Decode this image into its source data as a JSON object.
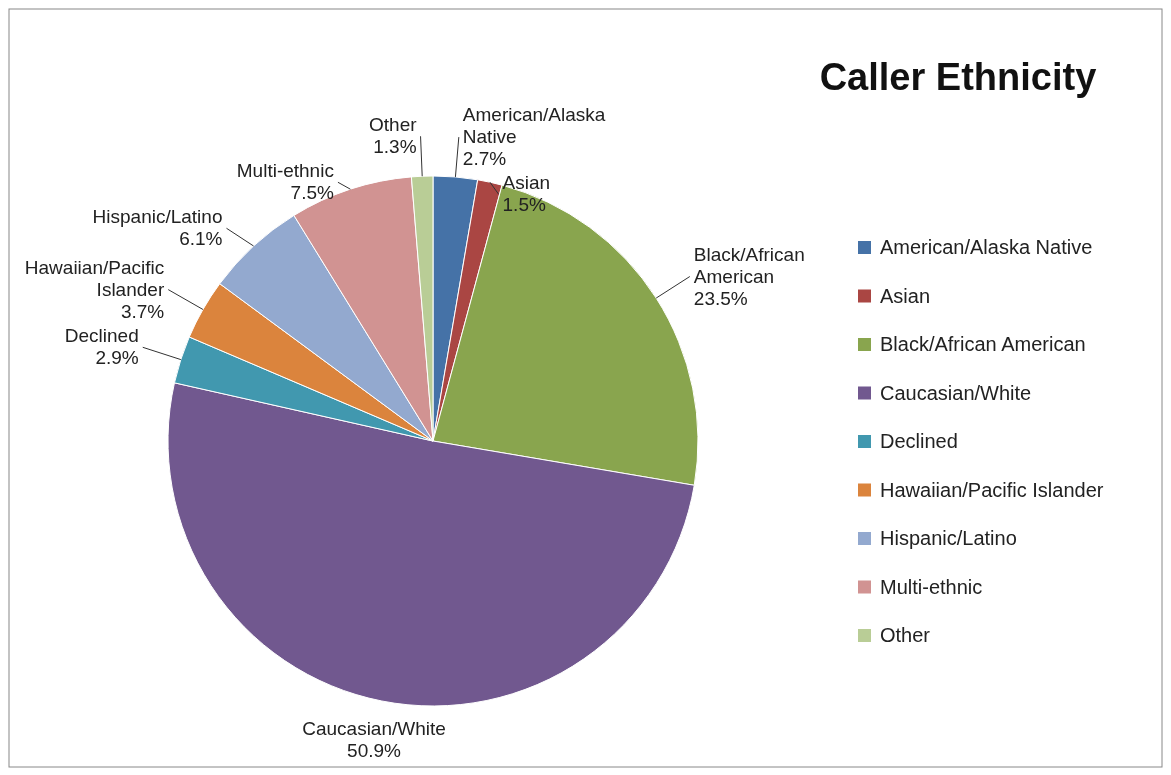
{
  "chart_data": {
    "type": "pie",
    "title": "Caller Ethnicity",
    "categories": [
      "American/Alaska Native",
      "Asian",
      "Black/African American",
      "Caucasian/White",
      "Declined",
      "Hawaiian/Pacific Islander",
      "Hispanic/Latino",
      "Multi-ethnic",
      "Other"
    ],
    "values": [
      2.7,
      1.5,
      23.5,
      50.9,
      2.9,
      3.7,
      6.1,
      7.5,
      1.3
    ],
    "value_labels": [
      "2.7%",
      "1.5%",
      "23.5%",
      "50.9%",
      "2.9%",
      "3.7%",
      "6.1%",
      "7.5%",
      "1.3%"
    ],
    "colors": [
      "#4572a7",
      "#aa4643",
      "#89a54e",
      "#71588f",
      "#4198af",
      "#db843d",
      "#93a9cf",
      "#d19392",
      "#b9cd96"
    ],
    "legend": "right"
  }
}
